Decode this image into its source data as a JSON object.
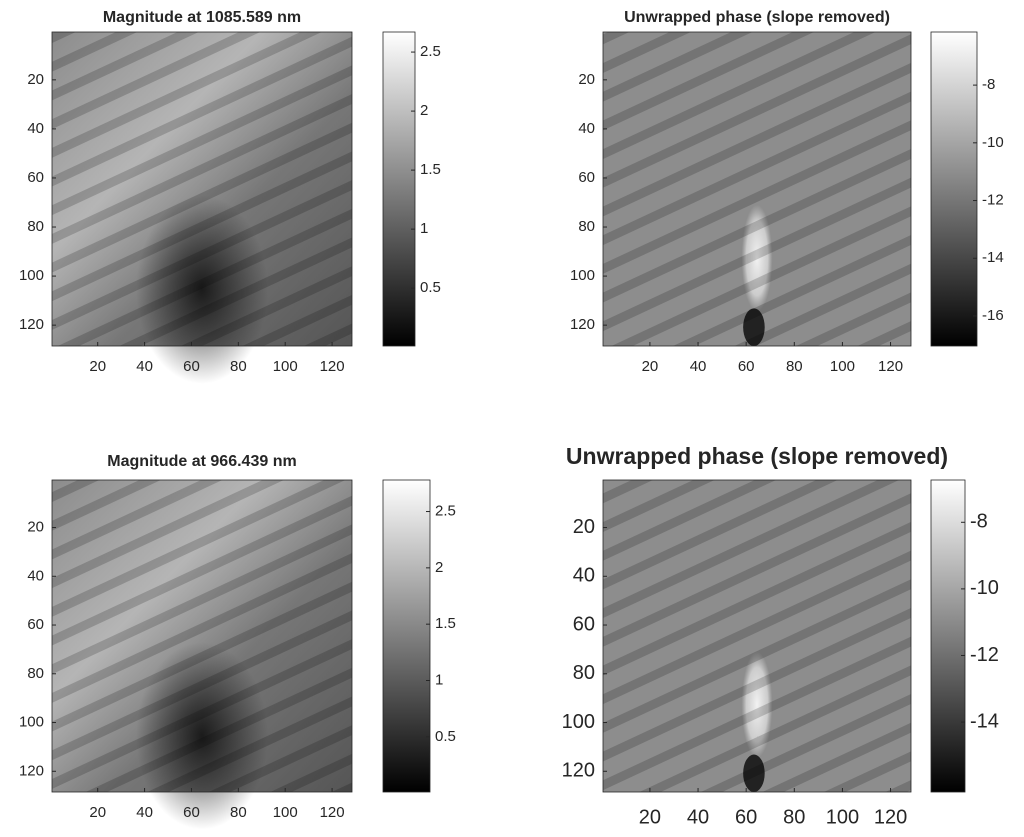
{
  "chart_data": [
    {
      "type": "image",
      "title": "Magnitude at 1085.589 nm",
      "colormap": "gray",
      "xlim": [
        0.5,
        128.5
      ],
      "ylim": [
        0.5,
        128.5
      ],
      "xticks": [
        20,
        40,
        60,
        80,
        100,
        120
      ],
      "yticks": [
        20,
        40,
        60,
        80,
        100,
        120
      ],
      "clim": [
        0.01,
        2.67
      ],
      "cticks": [
        0.5,
        1,
        1.5,
        2,
        2.5
      ]
    },
    {
      "type": "image",
      "title": "Unwrapped phase (slope removed)",
      "colormap": "gray",
      "xlim": [
        0.5,
        128.5
      ],
      "ylim": [
        0.5,
        128.5
      ],
      "xticks": [
        20,
        40,
        60,
        80,
        100,
        120
      ],
      "yticks": [
        20,
        40,
        60,
        80,
        100,
        120
      ],
      "clim": [
        -17.04,
        -6.16
      ],
      "cticks": [
        -16,
        -14,
        -12,
        -10,
        -8
      ]
    },
    {
      "type": "image",
      "title": "Magnitude at 966.439 nm",
      "colormap": "gray",
      "xlim": [
        0.5,
        128.5
      ],
      "ylim": [
        0.5,
        128.5
      ],
      "xticks": [
        20,
        40,
        60,
        80,
        100,
        120
      ],
      "yticks": [
        20,
        40,
        60,
        80,
        100,
        120
      ],
      "clim": [
        0.01,
        2.78
      ],
      "cticks": [
        0.5,
        1,
        1.5,
        2,
        2.5
      ]
    },
    {
      "type": "image",
      "title": "Unwrapped phase (slope removed)",
      "colormap": "gray",
      "xlim": [
        0.5,
        128.5
      ],
      "ylim": [
        0.5,
        128.5
      ],
      "xticks": [
        20,
        40,
        60,
        80,
        100,
        120
      ],
      "yticks": [
        20,
        40,
        60,
        80,
        100,
        120
      ],
      "clim": [
        -16.1,
        -6.73
      ],
      "cticks": [
        -14,
        -12,
        -10,
        -8
      ]
    }
  ]
}
